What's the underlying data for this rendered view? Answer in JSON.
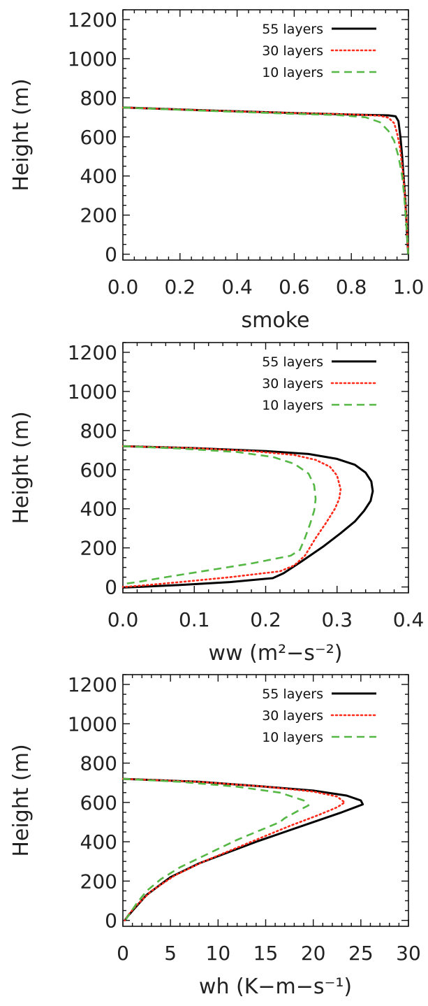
{
  "chart_data": [
    {
      "type": "line",
      "xlabel": "smoke",
      "ylabel": "Height (m)",
      "xlim": [
        0.0,
        1.0
      ],
      "ylim": [
        -30,
        1250
      ],
      "xticks": [
        "0.0",
        "0.2",
        "0.4",
        "0.6",
        "0.8",
        "1.0"
      ],
      "yticks": [
        "0",
        "200",
        "400",
        "600",
        "800",
        "1000",
        "1200"
      ],
      "legend_position": "top-right",
      "series": [
        {
          "name": "55 layers",
          "color": "#000000",
          "style": "solid",
          "points": [
            [
              0.0,
              750
            ],
            [
              0.3,
              735
            ],
            [
              0.6,
              722
            ],
            [
              0.8,
              714
            ],
            [
              0.93,
              710
            ],
            [
              0.955,
              705
            ],
            [
              0.965,
              680
            ],
            [
              0.972,
              600
            ],
            [
              0.978,
              500
            ],
            [
              0.983,
              400
            ],
            [
              0.988,
              300
            ],
            [
              0.992,
              200
            ],
            [
              0.995,
              100
            ],
            [
              0.998,
              30
            ],
            [
              0.999,
              0
            ]
          ]
        },
        {
          "name": "30 layers",
          "color": "#ff2a1a",
          "style": "dotted",
          "points": [
            [
              0.0,
              750
            ],
            [
              0.3,
              735
            ],
            [
              0.6,
              722
            ],
            [
              0.8,
              715
            ],
            [
              0.9,
              708
            ],
            [
              0.93,
              698
            ],
            [
              0.95,
              670
            ],
            [
              0.96,
              620
            ],
            [
              0.97,
              550
            ],
            [
              0.978,
              450
            ],
            [
              0.985,
              350
            ],
            [
              0.99,
              250
            ],
            [
              0.995,
              130
            ],
            [
              0.998,
              30
            ],
            [
              1.0,
              0
            ]
          ]
        },
        {
          "name": "10 layers",
          "color": "#55b845",
          "style": "dashed",
          "points": [
            [
              0.0,
              750
            ],
            [
              0.3,
              733
            ],
            [
              0.6,
              718
            ],
            [
              0.75,
              712
            ],
            [
              0.85,
              700
            ],
            [
              0.9,
              675
            ],
            [
              0.93,
              630
            ],
            [
              0.95,
              580
            ],
            [
              0.965,
              500
            ],
            [
              0.978,
              400
            ],
            [
              0.985,
              300
            ],
            [
              0.99,
              200
            ],
            [
              0.995,
              100
            ],
            [
              0.999,
              0
            ]
          ]
        }
      ]
    },
    {
      "type": "line",
      "xlabel": "ww (m²−s⁻²)",
      "ylabel": "Height (m)",
      "xlim": [
        0.0,
        0.4
      ],
      "ylim": [
        -30,
        1250
      ],
      "xticks": [
        "0.0",
        "0.1",
        "0.2",
        "0.3",
        "0.4"
      ],
      "yticks": [
        "0",
        "200",
        "400",
        "600",
        "800",
        "1000",
        "1200"
      ],
      "legend_position": "top-right",
      "series": [
        {
          "name": "55 layers",
          "color": "#000000",
          "style": "solid",
          "points": [
            [
              0.0,
              720
            ],
            [
              0.1,
              710
            ],
            [
              0.2,
              695
            ],
            [
              0.26,
              680
            ],
            [
              0.3,
              655
            ],
            [
              0.325,
              625
            ],
            [
              0.34,
              585
            ],
            [
              0.348,
              540
            ],
            [
              0.35,
              490
            ],
            [
              0.347,
              440
            ],
            [
              0.338,
              390
            ],
            [
              0.325,
              335
            ],
            [
              0.305,
              275
            ],
            [
              0.28,
              205
            ],
            [
              0.25,
              130
            ],
            [
              0.225,
              70
            ],
            [
              0.21,
              45
            ],
            [
              0.15,
              25
            ],
            [
              0.08,
              10
            ],
            [
              0.02,
              0
            ],
            [
              0.0,
              -3
            ]
          ]
        },
        {
          "name": "30 layers",
          "color": "#ff2a1a",
          "style": "dotted",
          "points": [
            [
              0.0,
              720
            ],
            [
              0.1,
              710
            ],
            [
              0.18,
              695
            ],
            [
              0.24,
              675
            ],
            [
              0.27,
              650
            ],
            [
              0.29,
              615
            ],
            [
              0.3,
              570
            ],
            [
              0.305,
              500
            ],
            [
              0.303,
              450
            ],
            [
              0.297,
              400
            ],
            [
              0.285,
              330
            ],
            [
              0.27,
              250
            ],
            [
              0.255,
              160
            ],
            [
              0.24,
              110
            ],
            [
              0.22,
              80
            ],
            [
              0.15,
              50
            ],
            [
              0.08,
              25
            ],
            [
              0.02,
              5
            ],
            [
              0.0,
              0
            ]
          ]
        },
        {
          "name": "10 layers",
          "color": "#55b845",
          "style": "dashed",
          "points": [
            [
              0.0,
              720
            ],
            [
              0.08,
              708
            ],
            [
              0.16,
              690
            ],
            [
              0.21,
              665
            ],
            [
              0.24,
              630
            ],
            [
              0.26,
              580
            ],
            [
              0.268,
              520
            ],
            [
              0.27,
              450
            ],
            [
              0.268,
              390
            ],
            [
              0.262,
              320
            ],
            [
              0.255,
              250
            ],
            [
              0.248,
              190
            ],
            [
              0.235,
              160
            ],
            [
              0.18,
              120
            ],
            [
              0.12,
              85
            ],
            [
              0.06,
              50
            ],
            [
              0.02,
              25
            ],
            [
              0.0,
              15
            ]
          ]
        }
      ]
    },
    {
      "type": "line",
      "xlabel": "wh (K−m−s⁻¹)",
      "ylabel": "Height (m)",
      "xlim": [
        0,
        30
      ],
      "ylim": [
        -30,
        1250
      ],
      "xticks": [
        "0",
        "5",
        "10",
        "15",
        "20",
        "25",
        "30"
      ],
      "yticks": [
        "0",
        "200",
        "400",
        "600",
        "800",
        "1000",
        "1200"
      ],
      "legend_position": "top-right",
      "series": [
        {
          "name": "55 layers",
          "color": "#000000",
          "style": "solid",
          "points": [
            [
              0.0,
              720
            ],
            [
              8,
              705
            ],
            [
              15,
              680
            ],
            [
              20,
              660
            ],
            [
              23.5,
              635
            ],
            [
              25,
              610
            ],
            [
              25.2,
              590
            ],
            [
              23,
              550
            ],
            [
              20,
              500
            ],
            [
              17,
              450
            ],
            [
              14,
              400
            ],
            [
              11,
              345
            ],
            [
              8,
              290
            ],
            [
              5,
              220
            ],
            [
              2.5,
              130
            ],
            [
              1.2,
              60
            ],
            [
              0.5,
              20
            ],
            [
              0.2,
              0
            ]
          ]
        },
        {
          "name": "30 layers",
          "color": "#ff2a1a",
          "style": "dotted",
          "points": [
            [
              0.0,
              720
            ],
            [
              8,
              705
            ],
            [
              15,
              680
            ],
            [
              20,
              655
            ],
            [
              22.5,
              630
            ],
            [
              23.3,
              600
            ],
            [
              22.5,
              575
            ],
            [
              20.5,
              535
            ],
            [
              17.5,
              480
            ],
            [
              14.5,
              420
            ],
            [
              11.5,
              360
            ],
            [
              8.5,
              300
            ],
            [
              5.5,
              230
            ],
            [
              3,
              150
            ],
            [
              1.5,
              80
            ],
            [
              0.6,
              30
            ],
            [
              0.2,
              0
            ]
          ]
        },
        {
          "name": "10 layers",
          "color": "#55b845",
          "style": "dashed",
          "points": [
            [
              0.0,
              720
            ],
            [
              6,
              705
            ],
            [
              12,
              680
            ],
            [
              16.5,
              650
            ],
            [
              19,
              610
            ],
            [
              19.5,
              585
            ],
            [
              18.5,
              560
            ],
            [
              17,
              520
            ],
            [
              16.5,
              500
            ],
            [
              15,
              470
            ],
            [
              12,
              410
            ],
            [
              9,
              340
            ],
            [
              6,
              270
            ],
            [
              4,
              210
            ],
            [
              2.5,
              150
            ],
            [
              1.5,
              90
            ],
            [
              0.8,
              40
            ],
            [
              0.3,
              5
            ]
          ]
        }
      ]
    }
  ]
}
